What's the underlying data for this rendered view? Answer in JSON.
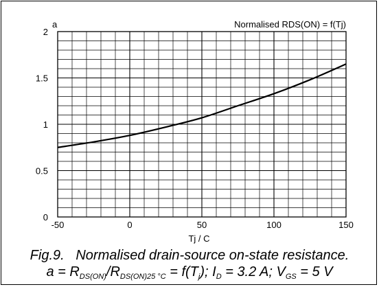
{
  "chart_data": {
    "type": "line",
    "title": "Normalised RDS(ON) = f(Tj)",
    "ylabel": "a",
    "xlabel": "Tj / C",
    "xlim": [
      -50,
      150
    ],
    "ylim": [
      0,
      2
    ],
    "xticks": [
      -50,
      0,
      50,
      100,
      150
    ],
    "yticks": [
      0,
      0.5,
      1,
      1.5,
      2
    ],
    "xtick_labels": [
      "-50",
      "0",
      "50",
      "100",
      "150"
    ],
    "ytick_labels": [
      "0",
      "0.5",
      "1",
      "1.5",
      "2"
    ],
    "grid": true,
    "series": [
      {
        "x": [
          -50,
          -25,
          0,
          25,
          50,
          75,
          100,
          125,
          150
        ],
        "y": [
          0.75,
          0.81,
          0.88,
          0.97,
          1.07,
          1.2,
          1.33,
          1.48,
          1.65
        ]
      }
    ]
  },
  "caption": {
    "line1": "Fig.9.   Normalised drain-source on-state resistance.",
    "l2_a": "a = R",
    "l2_sub1": "DS(ON)",
    "l2_slash": "/R",
    "l2_sub2": "DS(ON)25 °C",
    "l2_eq": " = f(T",
    "l2_sub3": "j",
    "l2_id": "); I",
    "l2_sub4": "D",
    "l2_id_val": " = 3.2 A; V",
    "l2_sub5": "GS",
    "l2_vgs_val": " = 5 V"
  }
}
